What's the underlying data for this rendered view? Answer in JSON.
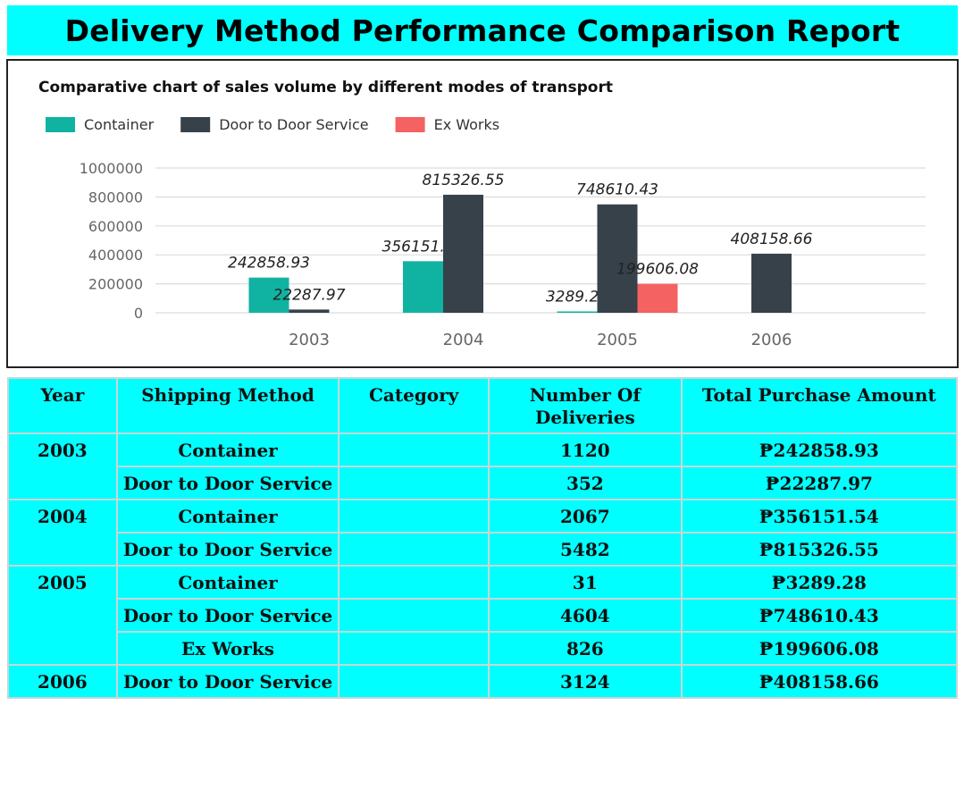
{
  "page_title": "Delivery Method Performance Comparison Report",
  "chart_data": {
    "type": "bar",
    "title": "Comparative chart of sales volume by different modes of transport",
    "xlabel": "",
    "ylabel": "",
    "categories": [
      "2003",
      "2004",
      "2005",
      "2006"
    ],
    "ylim": [
      0,
      1000000
    ],
    "yticks": [
      "0",
      "200000",
      "400000",
      "600000",
      "800000",
      "1000000"
    ],
    "grid": true,
    "legend_position": "top-left",
    "series": [
      {
        "name": "Container",
        "color": "#10b3a2",
        "values": [
          242858.93,
          356151.54,
          3289.28,
          null
        ],
        "labels": [
          "242858.93",
          "356151.54",
          "3289.28",
          ""
        ]
      },
      {
        "name": "Door to Door Service",
        "color": "#36414a",
        "values": [
          22287.97,
          815326.55,
          748610.43,
          408158.66
        ],
        "labels": [
          "22287.97",
          "815326.55",
          "748610.43",
          "408158.66"
        ]
      },
      {
        "name": "Ex Works",
        "color": "#f46262",
        "values": [
          null,
          null,
          199606.08,
          null
        ],
        "labels": [
          "",
          "",
          "199606.08",
          ""
        ]
      }
    ]
  },
  "table": {
    "headers": {
      "year": "Year",
      "shipping_method": "Shipping Method",
      "category": "Category",
      "deliveries": "Number Of Deliveries",
      "amount": "Total Purchase Amount"
    },
    "rows": [
      {
        "year": "2003",
        "method": "Container",
        "category": "",
        "deliveries": "1120",
        "amount": "₱242858.93"
      },
      {
        "year": "",
        "method": "Door to Door Service",
        "category": "",
        "deliveries": "352",
        "amount": "₱22287.97"
      },
      {
        "year": "2004",
        "method": "Container",
        "category": "",
        "deliveries": "2067",
        "amount": "₱356151.54"
      },
      {
        "year": "",
        "method": "Door to Door Service",
        "category": "",
        "deliveries": "5482",
        "amount": "₱815326.55"
      },
      {
        "year": "2005",
        "method": "Container",
        "category": "",
        "deliveries": "31",
        "amount": "₱3289.28"
      },
      {
        "year": "",
        "method": "Door to Door Service",
        "category": "",
        "deliveries": "4604",
        "amount": "₱748610.43"
      },
      {
        "year": "",
        "method": "Ex Works",
        "category": "",
        "deliveries": "826",
        "amount": "₱199606.08"
      },
      {
        "year": "2006",
        "method": "Door to Door Service",
        "category": "",
        "deliveries": "3124",
        "amount": "₱408158.66"
      }
    ]
  }
}
